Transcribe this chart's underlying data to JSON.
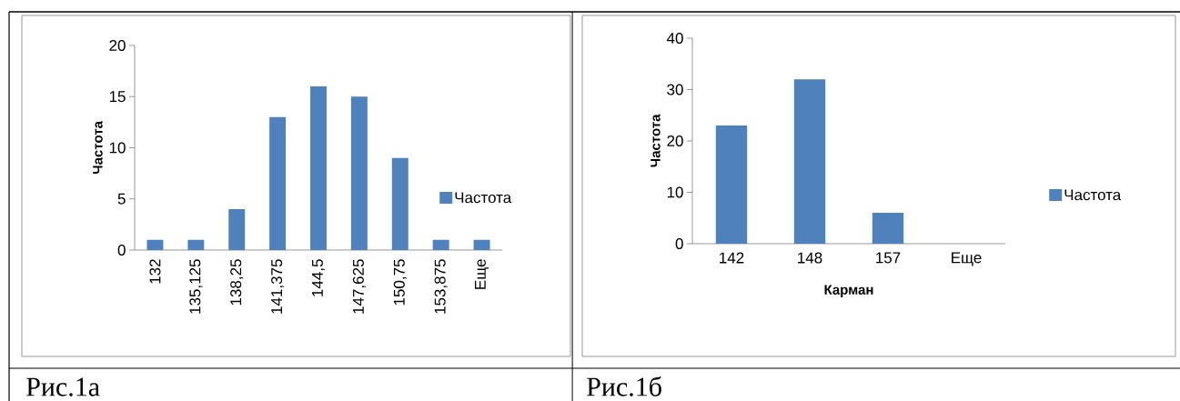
{
  "chart_data": [
    {
      "type": "bar",
      "ylabel": "Частота",
      "categories": [
        "132",
        "135,125",
        "138,25",
        "141,375",
        "144,5",
        "147,625",
        "150,75",
        "153,875",
        "Еще"
      ],
      "series": [
        {
          "name": "Частота",
          "color": "#4f81bd",
          "values": [
            1,
            1,
            4,
            13,
            16,
            15,
            9,
            1,
            1
          ]
        }
      ],
      "ylim": [
        0,
        20
      ],
      "yticks": [
        0,
        5,
        10,
        15,
        20
      ],
      "legend": "right",
      "annotations": [
        "Рис.1а"
      ]
    },
    {
      "type": "bar",
      "ylabel": "Частота",
      "xlabel": "Карман",
      "categories": [
        "142",
        "148",
        "157",
        "Еще"
      ],
      "series": [
        {
          "name": "Частота",
          "color": "#4f81bd",
          "values": [
            23,
            32,
            6,
            0
          ]
        }
      ],
      "ylim": [
        0,
        40
      ],
      "yticks": [
        0,
        10,
        20,
        30,
        40
      ],
      "legend": "right",
      "annotations": [
        "Рис.1б"
      ]
    }
  ]
}
